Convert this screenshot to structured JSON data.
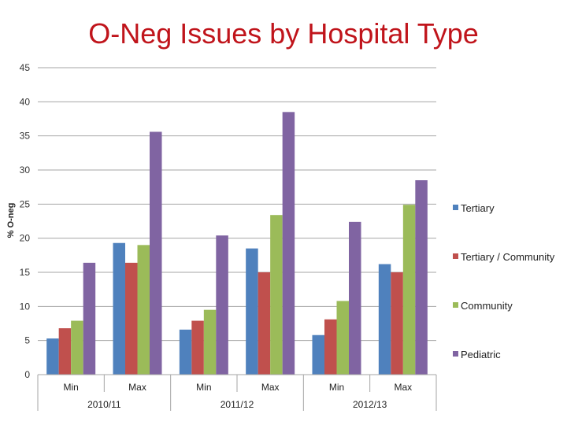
{
  "chart_data": {
    "type": "bar",
    "title": "O-Neg Issues by Hospital Type",
    "ylabel": "% O-neg",
    "xlabel": "",
    "ylim": [
      0,
      45
    ],
    "yticks": [
      0,
      5,
      10,
      15,
      20,
      25,
      30,
      35,
      40,
      45
    ],
    "grid": true,
    "legend_position": "right",
    "categories": [
      "Min",
      "Max",
      "Min",
      "Max",
      "Min",
      "Max"
    ],
    "groups": [
      {
        "label": "2010/11",
        "categories": [
          "Min",
          "Max"
        ]
      },
      {
        "label": "2011/12",
        "categories": [
          "Min",
          "Max"
        ]
      },
      {
        "label": "2012/13",
        "categories": [
          "Min",
          "Max"
        ]
      }
    ],
    "series": [
      {
        "name": "Tertiary",
        "color": "#4f81bd",
        "values": [
          5.3,
          19.3,
          6.6,
          18.5,
          5.8,
          16.2
        ]
      },
      {
        "name": "Tertiary / Community",
        "color": "#c0504d",
        "values": [
          6.8,
          16.4,
          7.9,
          15.0,
          8.1,
          15.0
        ]
      },
      {
        "name": "Community",
        "color": "#9bbb59",
        "values": [
          7.9,
          19.0,
          9.5,
          23.4,
          10.8,
          24.9
        ]
      },
      {
        "name": "Pediatric",
        "color": "#8064a2",
        "values": [
          16.4,
          35.6,
          20.4,
          38.5,
          22.4,
          28.5
        ]
      }
    ]
  }
}
